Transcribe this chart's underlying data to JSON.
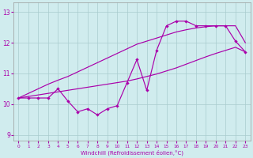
{
  "xlabel": "Windchill (Refroidissement éolien,°C)",
  "x_hours": [
    0,
    1,
    2,
    3,
    4,
    5,
    6,
    7,
    8,
    9,
    10,
    11,
    12,
    13,
    14,
    15,
    16,
    17,
    18,
    19,
    20,
    21,
    22,
    23
  ],
  "line_main": [
    10.2,
    10.2,
    10.2,
    10.2,
    10.5,
    10.1,
    9.75,
    9.85,
    9.65,
    9.85,
    9.95,
    10.7,
    11.45,
    10.45,
    11.75,
    12.55,
    12.7,
    12.7,
    12.55,
    12.55,
    12.55,
    12.55,
    12.05,
    11.7
  ],
  "line_upper": [
    10.2,
    10.35,
    10.5,
    10.65,
    10.78,
    10.9,
    11.05,
    11.2,
    11.35,
    11.5,
    11.65,
    11.8,
    11.95,
    12.05,
    12.15,
    12.25,
    12.35,
    12.42,
    12.48,
    12.52,
    12.55,
    12.55,
    12.55,
    12.0
  ],
  "line_lower": [
    10.2,
    10.25,
    10.3,
    10.35,
    10.4,
    10.45,
    10.5,
    10.55,
    10.6,
    10.65,
    10.7,
    10.75,
    10.82,
    10.9,
    10.98,
    11.08,
    11.18,
    11.3,
    11.42,
    11.54,
    11.65,
    11.75,
    11.85,
    11.7
  ],
  "ylim": [
    8.8,
    13.3
  ],
  "xlim": [
    -0.5,
    23.5
  ],
  "yticks": [
    9,
    10,
    11,
    12,
    13
  ],
  "xticks": [
    0,
    1,
    2,
    3,
    4,
    5,
    6,
    7,
    8,
    9,
    10,
    11,
    12,
    13,
    14,
    15,
    16,
    17,
    18,
    19,
    20,
    21,
    22,
    23
  ],
  "line_color": "#AA00AA",
  "bg_color": "#D0ECEE",
  "grid_color": "#A8CCCE"
}
